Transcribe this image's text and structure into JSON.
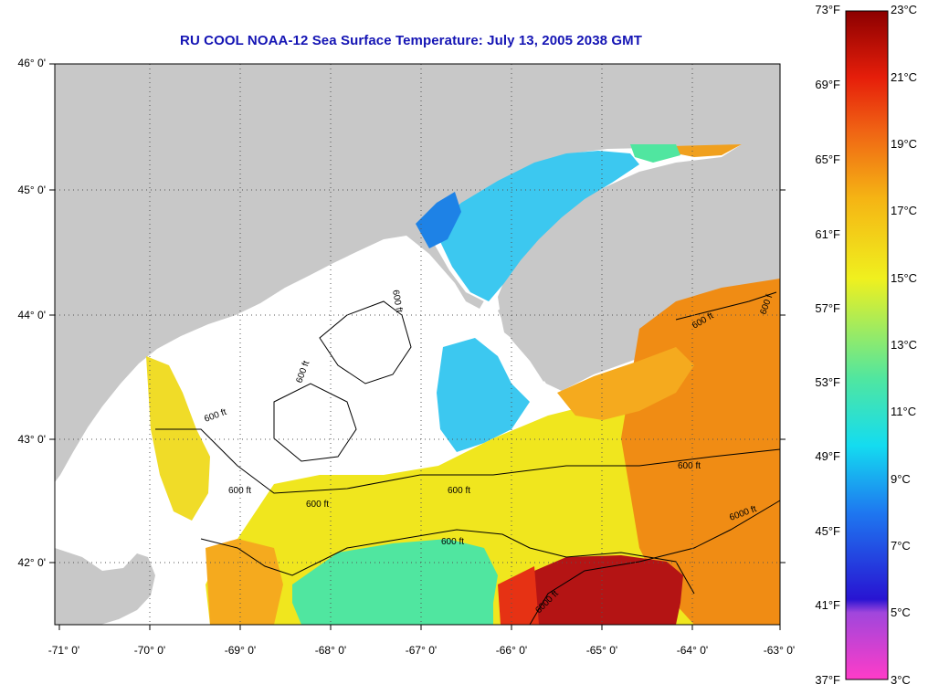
{
  "title": "RU COOL  NOAA-12  Sea Surface Temperature:  July 13, 2005 2038 GMT",
  "latitude_labels": [
    "46° 0'",
    "45° 0'",
    "44° 0'",
    "43° 0'",
    "42° 0'"
  ],
  "longitude_labels": [
    "-71° 0'",
    "-70° 0'",
    "-69° 0'",
    "-68° 0'",
    "-67° 0'",
    "-66° 0'",
    "-65° 0'",
    "-64° 0'",
    "-63° 0'"
  ],
  "contour_labels": {
    "c600": "600 ft",
    "c6000": "6000 ft",
    "c600_cut": "600 f"
  },
  "colorbar": {
    "fahrenheit_labels": [
      "73°F",
      "69°F",
      "65°F",
      "61°F",
      "57°F",
      "53°F",
      "49°F",
      "45°F",
      "41°F",
      "37°F"
    ],
    "celsius_labels": [
      "23°C",
      "21°C",
      "19°C",
      "17°C",
      "15°C",
      "13°C",
      "11°C",
      "9°C",
      "7°C",
      "5°C",
      "3°C"
    ],
    "range_celsius": [
      3,
      23
    ],
    "range_fahrenheit": [
      37,
      73
    ]
  },
  "colors": {
    "title": "#1414b4",
    "land": "#c8c8c8",
    "no_data": "#ffffff",
    "cold": "#1e64dc",
    "cool": "#3cc8f0",
    "mild": "#f0e61e",
    "warm": "#f08c14",
    "hot": "#b41414"
  }
}
